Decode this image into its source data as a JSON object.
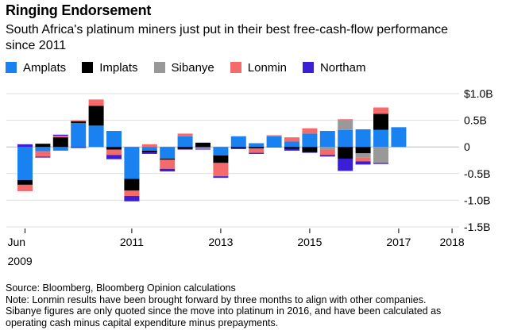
{
  "title": "Ringing Endorsement",
  "subtitle": "South Africa's platinum miners just put in their best free-cash-flow performance since 2011",
  "legend": [
    {
      "name": "Amplats",
      "color": "#1a82f0"
    },
    {
      "name": "Implats",
      "color": "#000000"
    },
    {
      "name": "Sibanye",
      "color": "#999999"
    },
    {
      "name": "Lonmin",
      "color": "#f56b6b"
    },
    {
      "name": "Northam",
      "color": "#3b1fd6"
    }
  ],
  "footer": {
    "source": "Source: Bloomberg, Bloomberg Opinion calculations",
    "note_lines": [
      "Note: Lonmin results have been brought forward by three months to align with other companies.",
      "Sibanye figures are only quoted since the move into platinum in 2016, and have been calculated as",
      "operating cash minus capital expenditure minus prepayments."
    ]
  },
  "chart_data": {
    "type": "bar",
    "stacked": true,
    "unit": "USD billions",
    "ylim": [
      -1.5,
      1.0
    ],
    "yticks": [
      {
        "value": 1.0,
        "label": "$1.0B"
      },
      {
        "value": 0.5,
        "label": "0.5B"
      },
      {
        "value": 0,
        "label": "0"
      },
      {
        "value": -0.5,
        "label": "-0.5B"
      },
      {
        "value": -1.0,
        "label": "-1.0B"
      },
      {
        "value": -1.5,
        "label": "-1.5B"
      }
    ],
    "xticks": [
      {
        "index": 0,
        "label": "Jun",
        "sublabel": "2009"
      },
      {
        "index": 6,
        "label": "2011"
      },
      {
        "index": 11,
        "label": "2013"
      },
      {
        "index": 16,
        "label": "2015"
      },
      {
        "index": 21,
        "label": "2017"
      },
      {
        "index": 24,
        "label": "2018"
      }
    ],
    "grid": true,
    "legend_position": "top",
    "periods": 25,
    "series": [
      {
        "name": "Amplats",
        "color": "#1a82f0",
        "values": [
          -0.62,
          -0.08,
          -0.07,
          0.45,
          0.4,
          0.3,
          -0.6,
          -0.07,
          -0.22,
          0.2,
          -0.02,
          -0.16,
          0.2,
          0.07,
          0.2,
          0.1,
          0.25,
          0.3,
          0.32,
          0.33,
          0.32,
          0.37,
          0.0,
          0.0,
          0.0
        ]
      },
      {
        "name": "Implats",
        "color": "#000000",
        "values": [
          -0.09,
          0.06,
          0.18,
          0.03,
          0.37,
          -0.05,
          -0.22,
          -0.03,
          -0.02,
          -0.04,
          0.08,
          -0.14,
          -0.02,
          -0.03,
          0.0,
          -0.04,
          -0.1,
          0.0,
          -0.22,
          -0.12,
          0.3,
          0.0,
          0.0,
          0.0,
          0.0
        ]
      },
      {
        "name": "Sibanye",
        "color": "#999999",
        "values": [
          0,
          0,
          0,
          0,
          0,
          0,
          0,
          0,
          0,
          0,
          0,
          0,
          0,
          0,
          0,
          0,
          0,
          -0.05,
          0.18,
          -0.08,
          -0.3,
          0.0,
          0.0,
          0.0,
          0.0
        ]
      },
      {
        "name": "Lonmin",
        "color": "#f56b6b",
        "values": [
          -0.12,
          -0.1,
          0.03,
          0.02,
          0.12,
          -0.1,
          -0.1,
          0.05,
          -0.17,
          0.05,
          -0.02,
          -0.25,
          0.0,
          -0.08,
          0.02,
          0.08,
          0.1,
          -0.1,
          0.02,
          -0.07,
          0.12,
          0.0,
          0.0,
          0.0,
          0.0
        ]
      },
      {
        "name": "Northam",
        "color": "#3b1fd6",
        "values": [
          0.05,
          -0.02,
          0.02,
          -0.02,
          0.0,
          -0.08,
          -0.1,
          -0.03,
          -0.05,
          -0.01,
          -0.01,
          -0.03,
          -0.02,
          -0.02,
          -0.01,
          -0.03,
          -0.01,
          -0.03,
          -0.23,
          -0.06,
          -0.02,
          0.0,
          0.0,
          0.0,
          0.0
        ]
      }
    ]
  }
}
